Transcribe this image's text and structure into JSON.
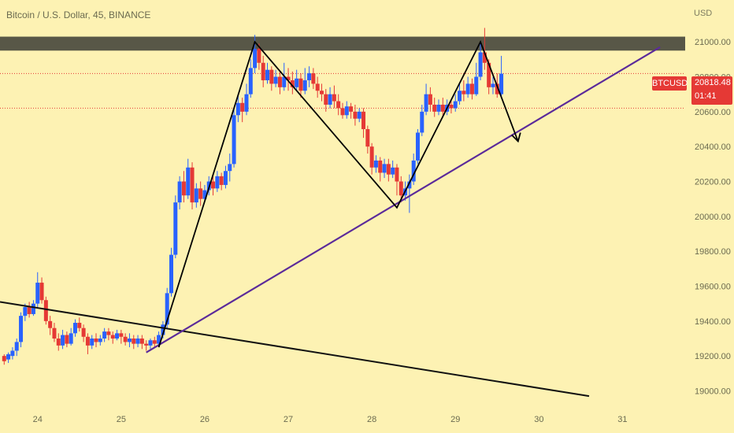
{
  "header": {
    "title": "Bitcoin / U.S. Dollar, 45, BINANCE"
  },
  "currency_label": "USD",
  "price_badge": {
    "symbol": "BTCUSD",
    "price": "20818.48",
    "countdown": "01:41"
  },
  "colors": {
    "background": "#fdf2b3",
    "up": "#2962ff",
    "down": "#e53935",
    "resistance_zone": "#4a4a3e",
    "trendline_support": "#5b2a9a",
    "trendline_old": "#111111",
    "pattern_lines": "#000000"
  },
  "chart_data": {
    "type": "candlestick",
    "title": "Bitcoin / U.S. Dollar, 45, BINANCE",
    "ylabel": "USD",
    "y_ticks": [
      "21000.00",
      "20800.00",
      "20600.00",
      "20400.00",
      "20200.00",
      "20000.00",
      "19800.00",
      "19600.00",
      "19400.00",
      "19200.00",
      "19000.00"
    ],
    "y_tick_values": [
      21000,
      20800,
      20600,
      20400,
      20200,
      20000,
      19800,
      19600,
      19400,
      19200,
      19000
    ],
    "x_ticks": [
      "24",
      "25",
      "26",
      "27",
      "28",
      "29",
      "30",
      "31"
    ],
    "x_tick_values": [
      24,
      25,
      26,
      27,
      28,
      29,
      30,
      31
    ],
    "xlim": [
      23.55,
      31.75
    ],
    "ylim": [
      18930,
      21240
    ],
    "last_price": 20818.48,
    "dotted_levels": [
      20818.48,
      20620
    ],
    "resistance_zone": [
      20950,
      21030
    ],
    "pattern_path": [
      [
        25.45,
        19250
      ],
      [
        26.6,
        21000
      ],
      [
        28.3,
        20050
      ],
      [
        29.3,
        21000
      ],
      [
        29.75,
        20430
      ]
    ],
    "support_trendline": [
      [
        25.3,
        19220
      ],
      [
        31.45,
        20970
      ]
    ],
    "old_trendline": [
      [
        23.55,
        19510
      ],
      [
        30.6,
        18970
      ]
    ],
    "candles": [
      [
        23.6,
        19170,
        19200,
        19150,
        19210,
        "down"
      ],
      [
        23.65,
        19180,
        19210,
        19160,
        19220,
        "up"
      ],
      [
        23.7,
        19200,
        19230,
        19180,
        19250,
        "up"
      ],
      [
        23.75,
        19230,
        19280,
        19200,
        19300,
        "up"
      ],
      [
        23.8,
        19280,
        19430,
        19250,
        19450,
        "up"
      ],
      [
        23.85,
        19430,
        19480,
        19400,
        19500,
        "up"
      ],
      [
        23.9,
        19480,
        19440,
        19420,
        19510,
        "down"
      ],
      [
        23.95,
        19440,
        19500,
        19430,
        19520,
        "up"
      ],
      [
        24.0,
        19500,
        19620,
        19480,
        19680,
        "up"
      ],
      [
        24.05,
        19620,
        19520,
        19500,
        19650,
        "down"
      ],
      [
        24.1,
        19520,
        19400,
        19380,
        19540,
        "down"
      ],
      [
        24.15,
        19400,
        19360,
        19320,
        19430,
        "down"
      ],
      [
        24.2,
        19360,
        19300,
        19280,
        19390,
        "down"
      ],
      [
        24.25,
        19300,
        19260,
        19230,
        19330,
        "down"
      ],
      [
        24.3,
        19260,
        19320,
        19240,
        19350,
        "up"
      ],
      [
        24.35,
        19320,
        19270,
        19250,
        19340,
        "down"
      ],
      [
        24.4,
        19270,
        19330,
        19260,
        19360,
        "up"
      ],
      [
        24.45,
        19330,
        19390,
        19310,
        19410,
        "up"
      ],
      [
        24.5,
        19390,
        19360,
        19340,
        19420,
        "down"
      ],
      [
        24.55,
        19360,
        19310,
        19280,
        19380,
        "down"
      ],
      [
        24.6,
        19310,
        19260,
        19210,
        19330,
        "down"
      ],
      [
        24.65,
        19260,
        19300,
        19240,
        19320,
        "up"
      ],
      [
        24.7,
        19300,
        19280,
        19250,
        19330,
        "down"
      ],
      [
        24.75,
        19280,
        19300,
        19260,
        19320,
        "up"
      ],
      [
        24.8,
        19300,
        19340,
        19280,
        19360,
        "up"
      ],
      [
        24.85,
        19340,
        19320,
        19290,
        19360,
        "down"
      ],
      [
        24.9,
        19320,
        19300,
        19270,
        19340,
        "down"
      ],
      [
        24.95,
        19300,
        19330,
        19290,
        19350,
        "up"
      ],
      [
        25.0,
        19330,
        19310,
        19270,
        19350,
        "down"
      ],
      [
        25.05,
        19310,
        19280,
        19260,
        19330,
        "down"
      ],
      [
        25.1,
        19280,
        19300,
        19250,
        19330,
        "up"
      ],
      [
        25.15,
        19300,
        19270,
        19240,
        19320,
        "down"
      ],
      [
        25.2,
        19270,
        19300,
        19250,
        19320,
        "up"
      ],
      [
        25.25,
        19300,
        19270,
        19240,
        19320,
        "down"
      ],
      [
        25.3,
        19270,
        19260,
        19230,
        19290,
        "down"
      ],
      [
        25.35,
        19260,
        19290,
        19240,
        19300,
        "up"
      ],
      [
        25.4,
        19290,
        19270,
        19250,
        19310,
        "down"
      ],
      [
        25.45,
        19270,
        19320,
        19250,
        19340,
        "up"
      ],
      [
        25.5,
        19320,
        19380,
        19300,
        19400,
        "up"
      ],
      [
        25.55,
        19380,
        19560,
        19360,
        19590,
        "up"
      ],
      [
        25.6,
        19560,
        19780,
        19540,
        19820,
        "up"
      ],
      [
        25.65,
        19780,
        20080,
        19760,
        20120,
        "up"
      ],
      [
        25.7,
        20080,
        20200,
        20040,
        20230,
        "up"
      ],
      [
        25.75,
        20200,
        20120,
        20080,
        20260,
        "down"
      ],
      [
        25.8,
        20120,
        20280,
        20100,
        20330,
        "up"
      ],
      [
        25.85,
        20280,
        20080,
        20040,
        20310,
        "down"
      ],
      [
        25.9,
        20080,
        20160,
        20050,
        20190,
        "up"
      ],
      [
        25.95,
        20160,
        20100,
        20060,
        20200,
        "down"
      ],
      [
        26.0,
        20100,
        20150,
        20080,
        20180,
        "up"
      ],
      [
        26.05,
        20150,
        20200,
        20120,
        20230,
        "up"
      ],
      [
        26.1,
        20200,
        20160,
        20120,
        20240,
        "down"
      ],
      [
        26.15,
        20160,
        20230,
        20140,
        20260,
        "up"
      ],
      [
        26.2,
        20230,
        20180,
        20150,
        20250,
        "down"
      ],
      [
        26.25,
        20180,
        20260,
        20160,
        20290,
        "up"
      ],
      [
        26.3,
        20260,
        20300,
        20200,
        20360,
        "up"
      ],
      [
        26.35,
        20300,
        20580,
        20280,
        20620,
        "up"
      ],
      [
        26.4,
        20580,
        20650,
        20540,
        20700,
        "up"
      ],
      [
        26.45,
        20650,
        20600,
        20540,
        20680,
        "down"
      ],
      [
        26.5,
        20600,
        20700,
        20580,
        20760,
        "up"
      ],
      [
        26.55,
        20700,
        20850,
        20680,
        20900,
        "up"
      ],
      [
        26.6,
        20850,
        20960,
        20820,
        21040,
        "up"
      ],
      [
        26.65,
        20960,
        20880,
        20840,
        20990,
        "down"
      ],
      [
        26.7,
        20880,
        20780,
        20740,
        20920,
        "down"
      ],
      [
        26.75,
        20780,
        20840,
        20760,
        20880,
        "up"
      ],
      [
        26.8,
        20840,
        20760,
        20720,
        20860,
        "down"
      ],
      [
        26.85,
        20760,
        20800,
        20740,
        20840,
        "up"
      ],
      [
        26.9,
        20800,
        20740,
        20700,
        20830,
        "down"
      ],
      [
        26.95,
        20740,
        20800,
        20720,
        20880,
        "up"
      ],
      [
        27.0,
        20800,
        20780,
        20720,
        20850,
        "down"
      ],
      [
        27.05,
        20780,
        20740,
        20700,
        20830,
        "down"
      ],
      [
        27.1,
        20740,
        20790,
        20720,
        20840,
        "up"
      ],
      [
        27.15,
        20790,
        20720,
        20680,
        20820,
        "down"
      ],
      [
        27.2,
        20720,
        20780,
        20700,
        20850,
        "up"
      ],
      [
        27.25,
        20780,
        20820,
        20740,
        20860,
        "up"
      ],
      [
        27.3,
        20820,
        20760,
        20730,
        20850,
        "down"
      ],
      [
        27.35,
        20760,
        20720,
        20680,
        20800,
        "down"
      ],
      [
        27.4,
        20720,
        20700,
        20660,
        20760,
        "down"
      ],
      [
        27.45,
        20700,
        20640,
        20600,
        20730,
        "down"
      ],
      [
        27.5,
        20640,
        20700,
        20620,
        20740,
        "up"
      ],
      [
        27.55,
        20700,
        20660,
        20620,
        20750,
        "down"
      ],
      [
        27.6,
        20660,
        20620,
        20580,
        20700,
        "down"
      ],
      [
        27.65,
        20620,
        20580,
        20560,
        20650,
        "down"
      ],
      [
        27.7,
        20580,
        20630,
        20560,
        20660,
        "up"
      ],
      [
        27.75,
        20630,
        20600,
        20560,
        20650,
        "down"
      ],
      [
        27.8,
        20600,
        20560,
        20520,
        20640,
        "down"
      ],
      [
        27.85,
        20560,
        20600,
        20540,
        20620,
        "up"
      ],
      [
        27.9,
        20600,
        20500,
        20450,
        20620,
        "down"
      ],
      [
        27.95,
        20500,
        20400,
        20360,
        20520,
        "down"
      ],
      [
        28.0,
        20400,
        20280,
        20240,
        20420,
        "down"
      ],
      [
        28.05,
        20280,
        20320,
        20250,
        20350,
        "up"
      ],
      [
        28.1,
        20320,
        20250,
        20200,
        20340,
        "down"
      ],
      [
        28.15,
        20250,
        20300,
        20220,
        20330,
        "up"
      ],
      [
        28.2,
        20300,
        20240,
        20200,
        20330,
        "down"
      ],
      [
        28.25,
        20240,
        20280,
        20220,
        20320,
        "up"
      ],
      [
        28.3,
        20280,
        20200,
        20120,
        20300,
        "down"
      ],
      [
        28.35,
        20200,
        20120,
        20080,
        20230,
        "down"
      ],
      [
        28.4,
        20120,
        20160,
        20090,
        20200,
        "up"
      ],
      [
        28.45,
        20160,
        20200,
        20020,
        20240,
        "up"
      ],
      [
        28.5,
        20200,
        20320,
        20180,
        20360,
        "up"
      ],
      [
        28.55,
        20320,
        20480,
        20300,
        20500,
        "up"
      ],
      [
        28.6,
        20480,
        20600,
        20460,
        20640,
        "up"
      ],
      [
        28.65,
        20600,
        20700,
        20580,
        20760,
        "up"
      ],
      [
        28.7,
        20700,
        20640,
        20600,
        20740,
        "down"
      ],
      [
        28.75,
        20640,
        20600,
        20570,
        20680,
        "down"
      ],
      [
        28.8,
        20600,
        20640,
        20580,
        20670,
        "up"
      ],
      [
        28.85,
        20640,
        20600,
        20570,
        20680,
        "down"
      ],
      [
        28.9,
        20600,
        20640,
        20580,
        20670,
        "up"
      ],
      [
        28.95,
        20640,
        20620,
        20590,
        20660,
        "down"
      ],
      [
        29.0,
        20620,
        20660,
        20600,
        20700,
        "up"
      ],
      [
        29.05,
        20660,
        20720,
        20640,
        20760,
        "up"
      ],
      [
        29.1,
        20720,
        20700,
        20660,
        20780,
        "down"
      ],
      [
        29.15,
        20700,
        20760,
        20680,
        20800,
        "up"
      ],
      [
        29.2,
        20760,
        20700,
        20670,
        20790,
        "down"
      ],
      [
        29.25,
        20700,
        20800,
        20690,
        20880,
        "up"
      ],
      [
        29.3,
        20800,
        20940,
        20780,
        20990,
        "up"
      ],
      [
        29.35,
        20940,
        20880,
        20840,
        21080,
        "down"
      ],
      [
        29.4,
        20880,
        20740,
        20700,
        20900,
        "down"
      ],
      [
        29.45,
        20740,
        20760,
        20700,
        20800,
        "up"
      ],
      [
        29.5,
        20760,
        20700,
        20680,
        20820,
        "down"
      ],
      [
        29.55,
        20700,
        20818,
        20690,
        20920,
        "up"
      ]
    ]
  }
}
